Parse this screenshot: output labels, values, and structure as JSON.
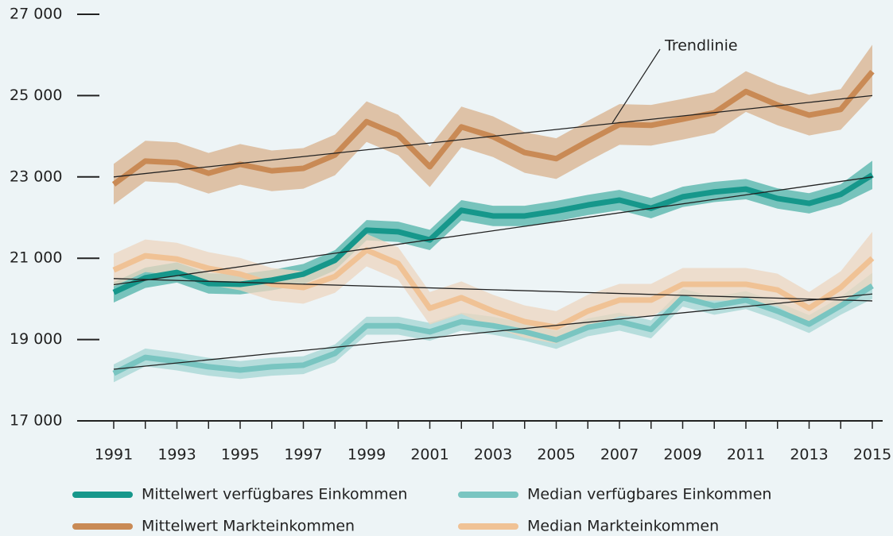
{
  "chart_data": {
    "type": "line",
    "annotation": "Trendlinie",
    "x": [
      1991,
      1992,
      1993,
      1994,
      1995,
      1996,
      1997,
      1998,
      1999,
      2000,
      2001,
      2002,
      2003,
      2004,
      2005,
      2006,
      2007,
      2008,
      2009,
      2010,
      2011,
      2012,
      2013,
      2014,
      2015
    ],
    "xlim": [
      1991,
      2015
    ],
    "xticks": [
      1991,
      1993,
      1995,
      1997,
      1999,
      2001,
      2003,
      2005,
      2007,
      2009,
      2011,
      2013,
      2015
    ],
    "ylim": [
      17000,
      27000
    ],
    "yticks": [
      {
        "value": 17000,
        "label": "17 000"
      },
      {
        "value": 19000,
        "label": "19 000"
      },
      {
        "value": 21000,
        "label": "21 000"
      },
      {
        "value": 23000,
        "label": "23 000"
      },
      {
        "value": 25000,
        "label": "25 000"
      },
      {
        "value": 27000,
        "label": "27 000"
      }
    ],
    "grid": true,
    "trend_x": [
      1991,
      2015
    ],
    "series": [
      {
        "name": "Mittelwert verfügbares Einkommen",
        "color": "#16978b",
        "band_color": "#4fb3a8",
        "values": [
          20160,
          20520,
          20650,
          20380,
          20360,
          20460,
          20610,
          20950,
          21690,
          21650,
          21450,
          22180,
          22040,
          22040,
          22160,
          22310,
          22430,
          22230,
          22510,
          22630,
          22700,
          22470,
          22350,
          22570,
          23050
        ],
        "band_lower": [
          19910,
          20270,
          20400,
          20130,
          20110,
          20210,
          20360,
          20700,
          21440,
          21400,
          21200,
          21930,
          21790,
          21790,
          21910,
          22060,
          22180,
          21980,
          22260,
          22380,
          22450,
          22220,
          22100,
          22320,
          22700
        ],
        "band_upper": [
          20410,
          20770,
          20900,
          20630,
          20610,
          20710,
          20860,
          21200,
          21940,
          21900,
          21700,
          22430,
          22290,
          22290,
          22410,
          22560,
          22680,
          22480,
          22760,
          22880,
          22950,
          22720,
          22600,
          22820,
          23400
        ],
        "trend": [
          20350,
          23000
        ]
      },
      {
        "name": "Median verfügbares Einkommen",
        "color": "#79c5c1",
        "band_color": "#a3d6d3",
        "values": [
          18170,
          18560,
          18460,
          18330,
          18250,
          18330,
          18370,
          18660,
          19340,
          19340,
          19190,
          19440,
          19340,
          19190,
          18990,
          19300,
          19440,
          19250,
          20030,
          19830,
          19970,
          19700,
          19380,
          19830,
          20320
        ],
        "band_lower": [
          17950,
          18340,
          18240,
          18110,
          18030,
          18110,
          18150,
          18440,
          19120,
          19120,
          18970,
          19220,
          19120,
          18970,
          18770,
          19080,
          19220,
          19030,
          19810,
          19610,
          19750,
          19480,
          19160,
          19610,
          20000
        ],
        "band_upper": [
          18390,
          18780,
          18680,
          18550,
          18470,
          18550,
          18590,
          18880,
          19560,
          19560,
          19410,
          19660,
          19560,
          19410,
          19210,
          19520,
          19660,
          19470,
          20250,
          20050,
          20190,
          19920,
          19600,
          20050,
          20640
        ],
        "trend": [
          18270,
          20120
        ]
      },
      {
        "name": "Mittelwert Markteinkommen",
        "color": "#c98a55",
        "band_color": "#d8b28c",
        "values": [
          22820,
          23390,
          23350,
          23090,
          23310,
          23150,
          23210,
          23540,
          24360,
          24030,
          23250,
          24230,
          23990,
          23600,
          23450,
          23880,
          24290,
          24270,
          24420,
          24580,
          25100,
          24770,
          24520,
          24660,
          25590
        ],
        "band_lower": [
          22320,
          22890,
          22850,
          22590,
          22810,
          22650,
          22710,
          23040,
          23860,
          23530,
          22750,
          23730,
          23490,
          23100,
          22950,
          23380,
          23790,
          23770,
          23920,
          24080,
          24600,
          24270,
          24020,
          24160,
          24990
        ],
        "band_upper": [
          23320,
          23890,
          23850,
          23590,
          23810,
          23650,
          23710,
          24040,
          24860,
          24530,
          23750,
          24730,
          24490,
          24100,
          23950,
          24380,
          24790,
          24770,
          24920,
          25080,
          25600,
          25270,
          25020,
          25160,
          26250
        ],
        "trend": [
          23000,
          25000
        ]
      },
      {
        "name": "Median Markteinkommen",
        "color": "#f0c295",
        "band_color": "#ecd6bf",
        "values": [
          20710,
          21060,
          20980,
          20750,
          20610,
          20360,
          20280,
          20550,
          21200,
          20870,
          19770,
          20030,
          19700,
          19440,
          19300,
          19700,
          19970,
          19970,
          20360,
          20360,
          20360,
          20220,
          19770,
          20280,
          21000
        ],
        "band_lower": [
          20310,
          20660,
          20580,
          20350,
          20210,
          19960,
          19880,
          20150,
          20800,
          20470,
          19370,
          19630,
          19300,
          19040,
          18900,
          19300,
          19570,
          19570,
          19960,
          19960,
          19960,
          19820,
          19370,
          19880,
          20350
        ],
        "band_upper": [
          21110,
          21460,
          21380,
          21150,
          21010,
          20760,
          20680,
          20950,
          21600,
          21270,
          20170,
          20430,
          20100,
          19840,
          19700,
          20100,
          20370,
          20370,
          20760,
          20760,
          20760,
          20620,
          20170,
          20680,
          21650
        ],
        "trend": [
          20500,
          19950
        ]
      }
    ]
  }
}
